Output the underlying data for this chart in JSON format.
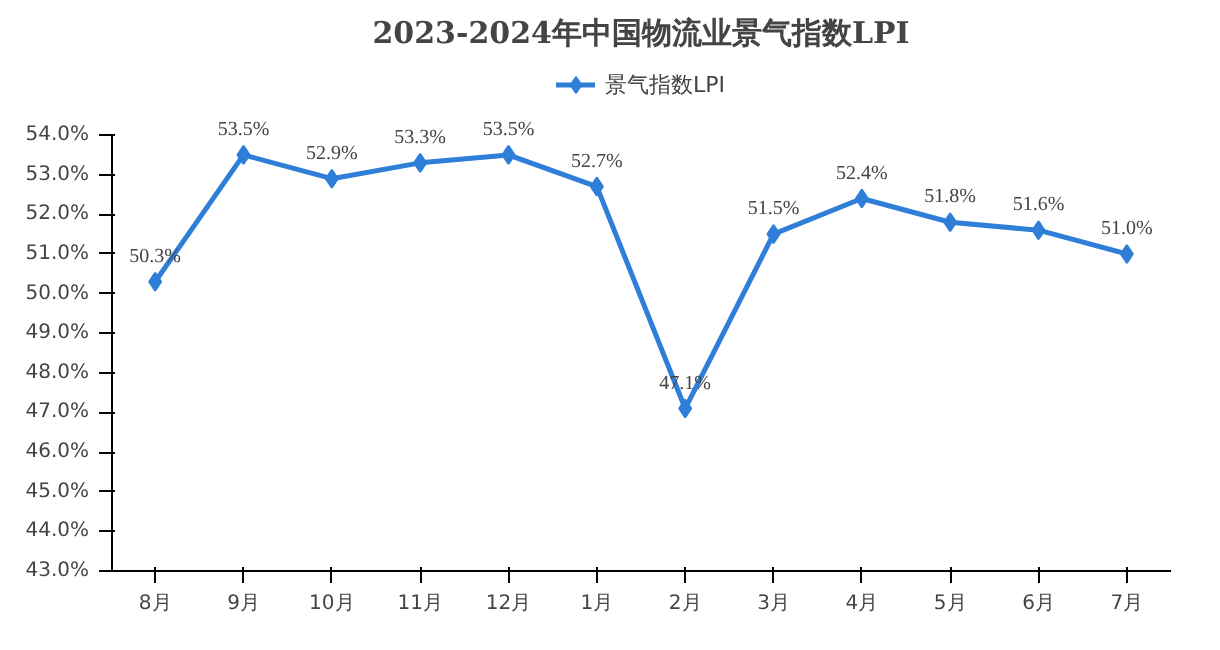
{
  "chart_data": {
    "type": "line",
    "title": "2023-2024年中国物流业景气指数LPI",
    "categories": [
      "8月",
      "9月",
      "10月",
      "11月",
      "12月",
      "1月",
      "2月",
      "3月",
      "4月",
      "5月",
      "6月",
      "7月"
    ],
    "series": [
      {
        "name": "景气指数LPI",
        "color": "#2f7ed8",
        "values": [
          50.3,
          53.5,
          52.9,
          53.3,
          53.5,
          52.7,
          47.1,
          51.5,
          52.4,
          51.8,
          51.6,
          51.0
        ],
        "value_labels": [
          "50.3%",
          "53.5%",
          "52.9%",
          "53.3%",
          "53.5%",
          "52.7%",
          "47.1%",
          "51.5%",
          "52.4%",
          "51.8%",
          "51.6%",
          "51.0%"
        ]
      }
    ],
    "ylim": [
      43.0,
      54.0
    ],
    "yticks": [
      {
        "value": 43.0,
        "label": "43.0%"
      },
      {
        "value": 44.0,
        "label": "44.0%"
      },
      {
        "value": 45.0,
        "label": "45.0%"
      },
      {
        "value": 46.0,
        "label": "46.0%"
      },
      {
        "value": 47.0,
        "label": "47.0%"
      },
      {
        "value": 48.0,
        "label": "48.0%"
      },
      {
        "value": 49.0,
        "label": "49.0%"
      },
      {
        "value": 50.0,
        "label": "50.0%"
      },
      {
        "value": 51.0,
        "label": "51.0%"
      },
      {
        "value": 52.0,
        "label": "52.0%"
      },
      {
        "value": 53.0,
        "label": "53.0%"
      },
      {
        "value": 54.0,
        "label": "54.0%"
      }
    ],
    "legend": "top",
    "marker": "diamond",
    "line_style": "solid",
    "grid": false
  }
}
